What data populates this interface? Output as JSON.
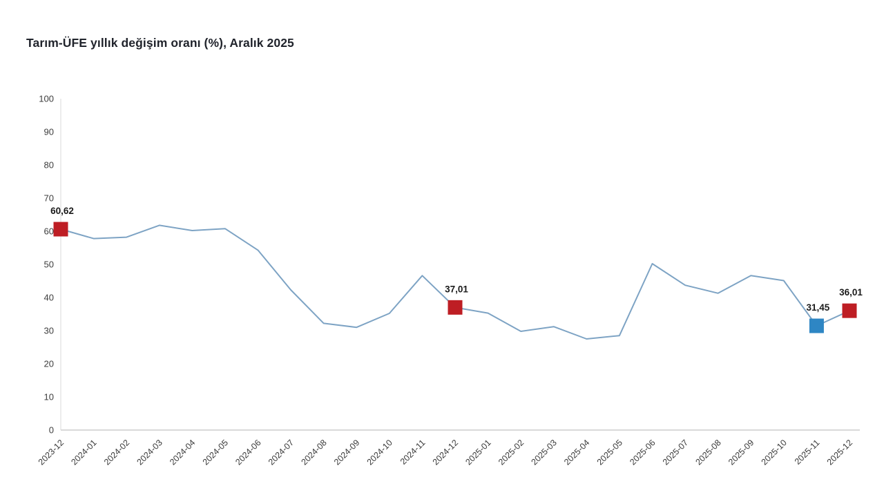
{
  "title": "Tarım-ÜFE yıllık değişim oranı (%), Aralık 2025",
  "chart_data": {
    "type": "line",
    "title": "Tarım-ÜFE yıllık değişim oranı (%), Aralık 2025",
    "categories": [
      "2023-12",
      "2024-01",
      "2024-02",
      "2024-03",
      "2024-04",
      "2024-05",
      "2024-06",
      "2024-07",
      "2024-08",
      "2024-09",
      "2024-10",
      "2024-11",
      "2024-12",
      "2025-01",
      "2025-02",
      "2025-03",
      "2025-04",
      "2025-05",
      "2025-06",
      "2025-07",
      "2025-08",
      "2025-09",
      "2025-10",
      "2025-11",
      "2025-12"
    ],
    "values": [
      60.62,
      57.8,
      58.2,
      61.8,
      60.2,
      60.8,
      54.3,
      42.3,
      32.2,
      31.0,
      35.2,
      46.6,
      37.01,
      35.3,
      29.8,
      31.2,
      27.5,
      28.5,
      50.2,
      43.7,
      41.3,
      46.6,
      45.1,
      31.45,
      36.01
    ],
    "xlabel": "",
    "ylabel": "",
    "ylim": [
      0,
      100
    ],
    "y_tick_step": 10,
    "grid": false,
    "legend": false,
    "x_label_rotation": -45,
    "line_color": "#7da3c4",
    "axis_color": "#d9d9d9",
    "marked_points": [
      {
        "index": 0,
        "label": "60,62",
        "color": "#be1e24"
      },
      {
        "index": 12,
        "label": "37,01",
        "color": "#be1e24"
      },
      {
        "index": 23,
        "label": "31,45",
        "color": "#2e86c4"
      },
      {
        "index": 24,
        "label": "36,01",
        "color": "#be1e24"
      }
    ]
  }
}
